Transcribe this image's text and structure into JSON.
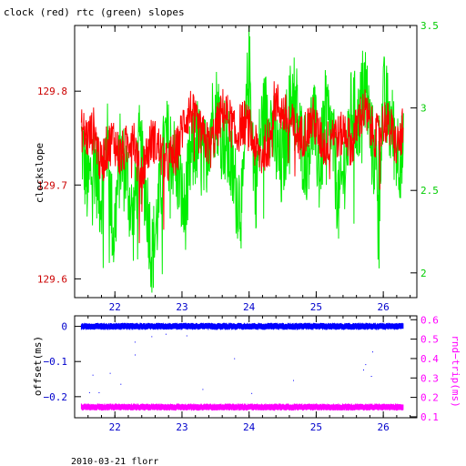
{
  "title": "clock (red) rtc (green) slopes",
  "footer": "2010-03-21 florr",
  "colors": {
    "red": "#ff0000",
    "green": "#00ee00",
    "blue": "#0000ff",
    "magenta": "#ff00ff",
    "black": "#000000"
  },
  "chart_data": [
    {
      "type": "line",
      "title": "clock (red) rtc (green) slopes",
      "xlabel": "",
      "ylabel": "clockslope",
      "xlim": [
        21.4,
        26.5
      ],
      "x_ticks": [
        "22",
        "23",
        "24",
        "25",
        "26"
      ],
      "ylim_left": [
        129.58,
        129.87
      ],
      "y_ticks_left": [
        "129.6",
        "129.7",
        "129.8"
      ],
      "y2label": "",
      "ylim_right": [
        1.85,
        3.5
      ],
      "y_ticks_right": [
        "2",
        "2.5",
        "3",
        "3.5"
      ],
      "series": [
        {
          "color": "red",
          "axis": "left",
          "x_range": [
            21.5,
            26.3
          ],
          "values": [
            129.76,
            129.75,
            129.76,
            129.72,
            129.74,
            129.75,
            129.73,
            129.74,
            129.76,
            129.71,
            129.73,
            129.75,
            129.74,
            129.72,
            129.73,
            129.74,
            129.77,
            129.78,
            129.76,
            129.75,
            129.74,
            129.76,
            129.78,
            129.77,
            129.75,
            129.77,
            129.76,
            129.74,
            129.73,
            129.75,
            129.79,
            129.78,
            129.77,
            129.76,
            129.75,
            129.76,
            129.77,
            129.75,
            129.74,
            129.76,
            129.75,
            129.76,
            129.74,
            129.77,
            129.78,
            129.76,
            129.75,
            129.77,
            129.76,
            129.74,
            129.76
          ]
        },
        {
          "color": "green",
          "axis": "right",
          "x_range": [
            21.5,
            26.3
          ],
          "values": [
            2.8,
            2.5,
            2.7,
            2.45,
            2.8,
            2.2,
            2.7,
            2.6,
            2.3,
            2.75,
            2.5,
            2.1,
            2.4,
            2.8,
            2.75,
            2.6,
            2.35,
            2.7,
            2.8,
            2.65,
            2.9,
            3.0,
            2.85,
            2.7,
            2.5,
            2.4,
            3.3,
            2.5,
            2.9,
            3.0,
            2.8,
            2.6,
            2.9,
            3.15,
            2.8,
            2.7,
            2.95,
            2.6,
            3.0,
            2.8,
            2.4,
            2.7,
            3.0,
            2.9,
            3.2,
            2.8,
            2.6,
            3.05,
            2.9,
            2.75,
            2.7
          ]
        }
      ]
    },
    {
      "type": "scatter",
      "xlabel": "",
      "ylabel": "offset(ms)",
      "xlim": [
        21.4,
        26.5
      ],
      "x_ticks": [
        "22",
        "23",
        "24",
        "25",
        "26"
      ],
      "ylim_left": [
        -0.26,
        0.03
      ],
      "y_ticks_left": [
        "0",
        "−0.1",
        "−0.2"
      ],
      "y2label": "rnd−trip(ms)",
      "ylim_right": [
        0.095,
        0.62
      ],
      "y_ticks_right": [
        "0.1",
        "0.2",
        "0.3",
        "0.4",
        "0.5",
        "0.6"
      ],
      "series": [
        {
          "color": "blue",
          "axis": "left",
          "x_range": [
            21.5,
            26.3
          ],
          "approx_value": 0.0
        },
        {
          "color": "magenta",
          "axis": "right",
          "x_range": [
            21.5,
            26.3
          ],
          "approx_value": 0.15
        }
      ]
    }
  ]
}
